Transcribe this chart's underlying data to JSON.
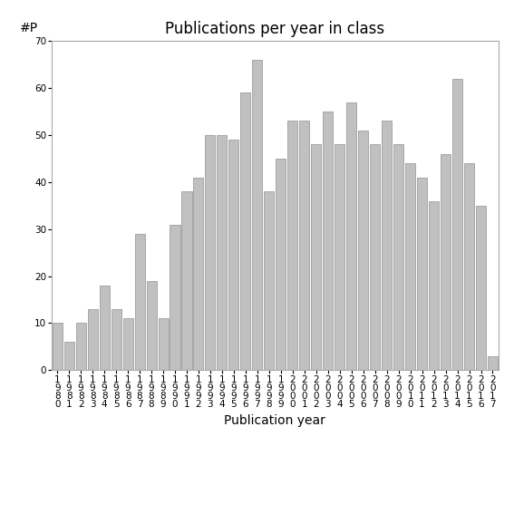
{
  "title": "Publications per year in class",
  "xlabel": "Publication year",
  "ylabel_text": "#P",
  "years": [
    1980,
    1981,
    1982,
    1983,
    1984,
    1985,
    1986,
    1987,
    1988,
    1989,
    1990,
    1991,
    1992,
    1993,
    1994,
    1995,
    1996,
    1997,
    1998,
    1999,
    2000,
    2001,
    2002,
    2003,
    2004,
    2005,
    2006,
    2007,
    2008,
    2009,
    2010,
    2011,
    2012,
    2013,
    2014,
    2015,
    2016,
    2017
  ],
  "values": [
    10,
    6,
    10,
    13,
    18,
    13,
    11,
    29,
    19,
    11,
    31,
    38,
    41,
    50,
    50,
    49,
    59,
    66,
    38,
    45,
    53,
    53,
    48,
    55,
    48,
    57,
    51,
    48,
    53,
    48,
    44,
    41,
    36,
    46,
    62,
    44,
    35,
    3
  ],
  "bar_color": "#c0c0c0",
  "bar_edge_color": "#909090",
  "ylim": [
    0,
    70
  ],
  "yticks": [
    0,
    10,
    20,
    30,
    40,
    50,
    60,
    70
  ],
  "bg_color": "#ffffff",
  "title_fontsize": 12,
  "axis_label_fontsize": 10,
  "tick_fontsize": 7.5
}
